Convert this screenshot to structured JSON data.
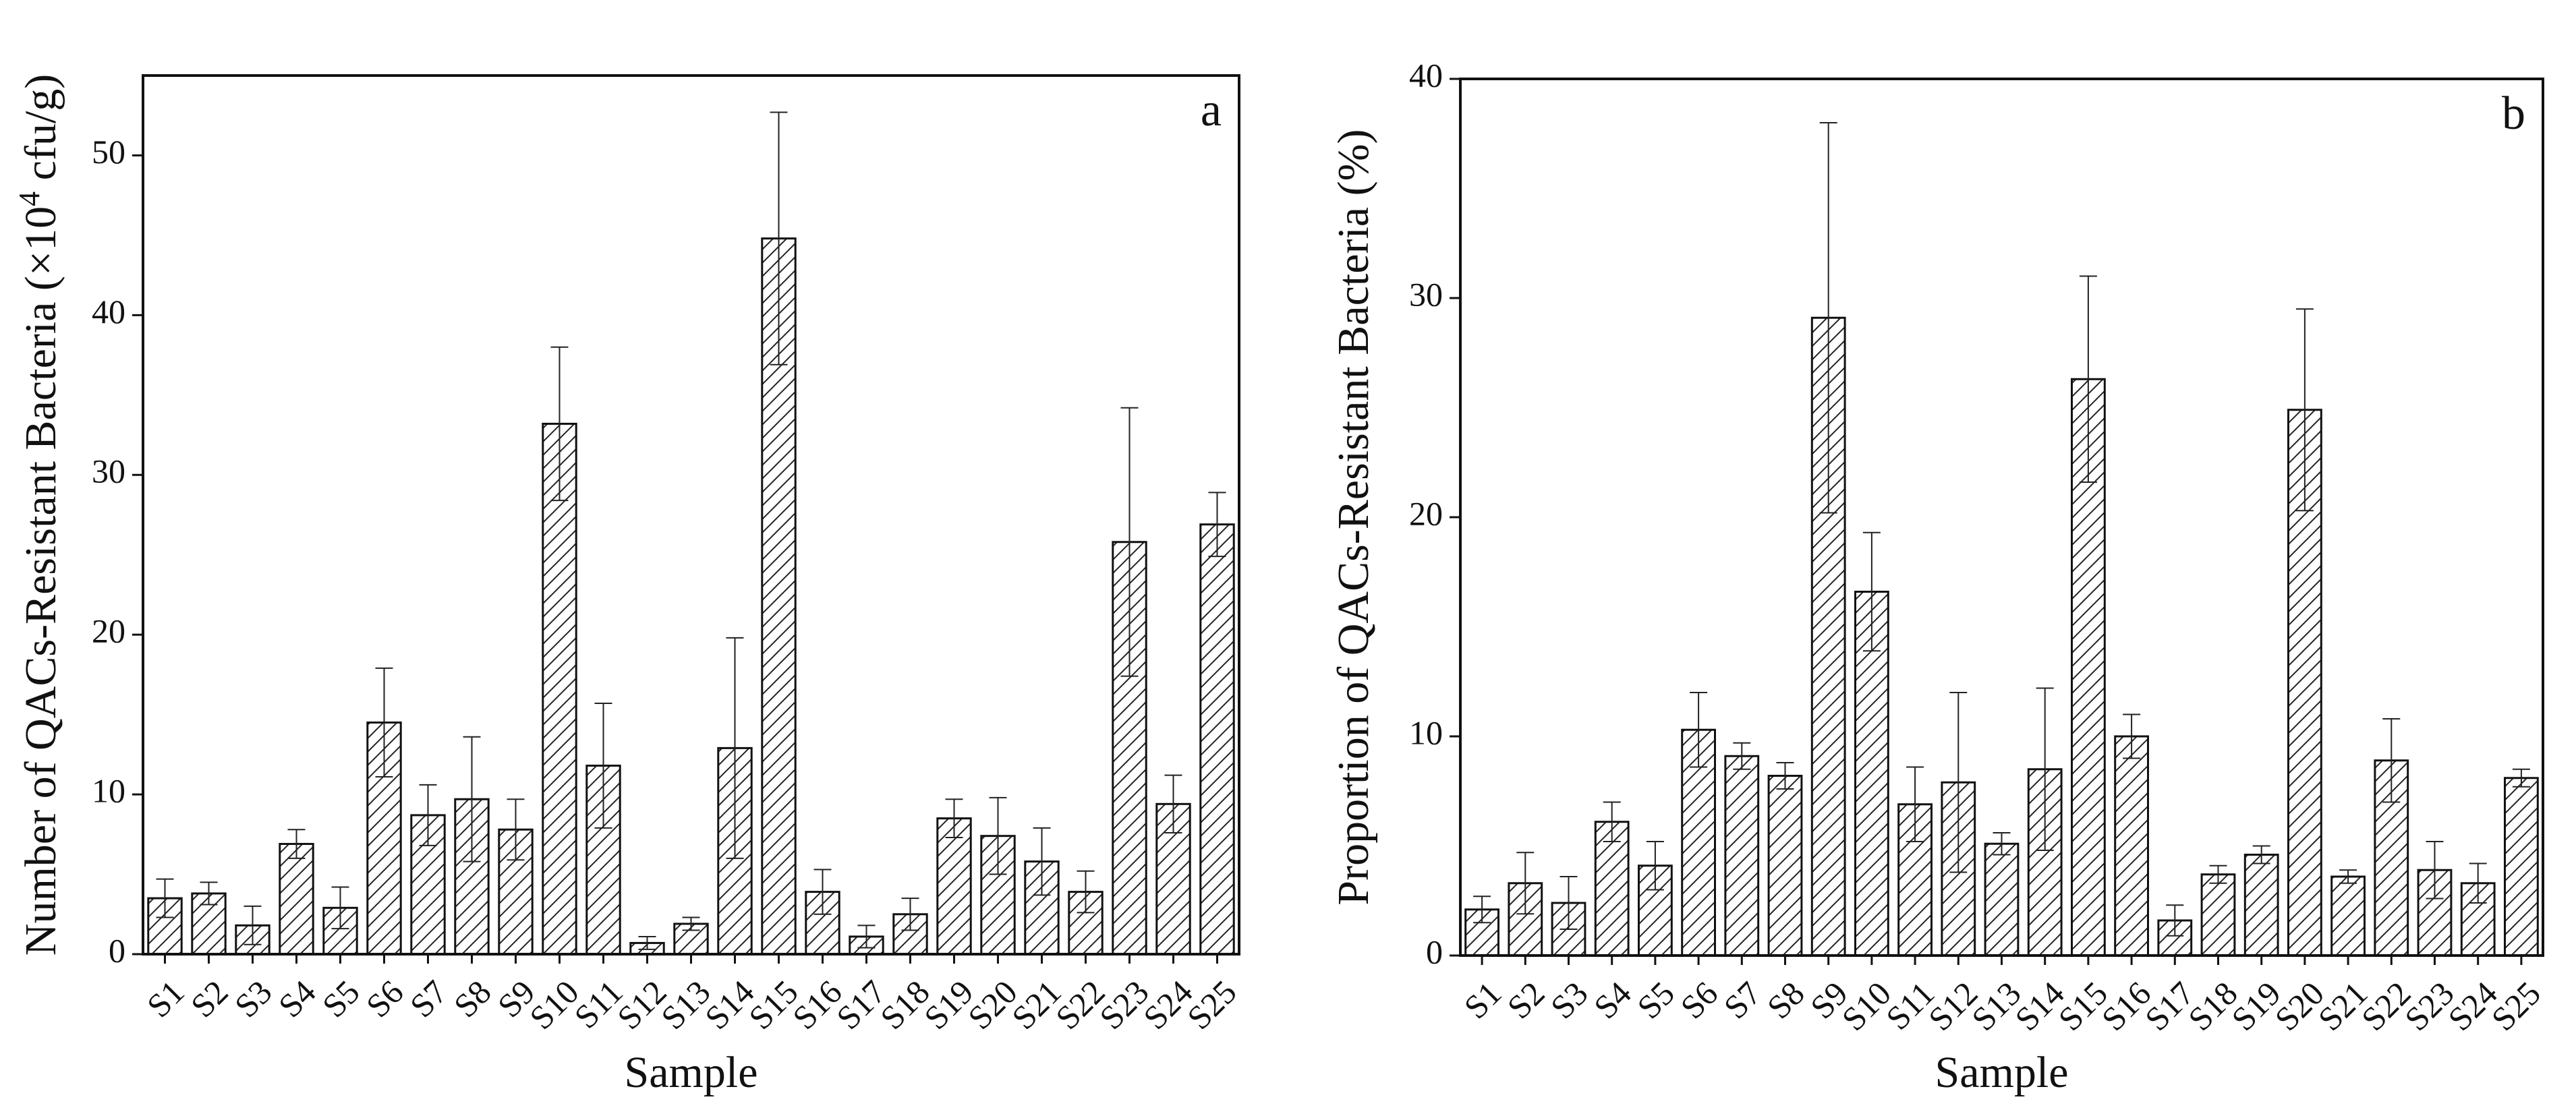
{
  "chart_data": [
    {
      "type": "bar",
      "panel_label": "a",
      "xlabel": "Sample",
      "ylabel": "Number of QACs-Resistant Bacteria (×10",
      "ylabel_sup": "4",
      "ylabel_unit": " cfu/g)",
      "ylim": [
        0,
        55
      ],
      "yticks": [
        0,
        10,
        20,
        30,
        40,
        50
      ],
      "categories": [
        "S1",
        "S2",
        "S3",
        "S4",
        "S5",
        "S6",
        "S7",
        "S8",
        "S9",
        "S10",
        "S11",
        "S12",
        "S13",
        "S14",
        "S15",
        "S16",
        "S17",
        "S18",
        "S19",
        "S20",
        "S21",
        "S22",
        "S23",
        "S24",
        "S25"
      ],
      "values": [
        3.5,
        3.8,
        1.8,
        6.9,
        2.9,
        14.5,
        8.7,
        9.7,
        7.8,
        33.2,
        11.8,
        0.7,
        1.9,
        12.9,
        44.8,
        3.9,
        1.1,
        2.5,
        8.5,
        7.4,
        5.8,
        3.9,
        25.8,
        9.4,
        26.9
      ],
      "errors": [
        1.2,
        0.7,
        1.2,
        0.9,
        1.3,
        3.4,
        1.9,
        3.9,
        1.9,
        4.8,
        3.9,
        0.4,
        0.4,
        6.9,
        7.9,
        1.4,
        0.7,
        1.0,
        1.2,
        2.4,
        2.1,
        1.3,
        8.4,
        1.8,
        2.0
      ],
      "grid": false,
      "pattern": "diagonal-hatch"
    },
    {
      "type": "bar",
      "panel_label": "b",
      "xlabel": "Sample",
      "ylabel": "Proportion of QACs-Resistant Bacteria (%)",
      "ylim": [
        0,
        40
      ],
      "yticks": [
        0,
        10,
        20,
        30,
        40
      ],
      "categories": [
        "S1",
        "S2",
        "S3",
        "S4",
        "S5",
        "S6",
        "S7",
        "S8",
        "S9",
        "S10",
        "S11",
        "S12",
        "S13",
        "S14",
        "S15",
        "S16",
        "S17",
        "S18",
        "S19",
        "S20",
        "S21",
        "S22",
        "S23",
        "S24",
        "S25"
      ],
      "values": [
        2.1,
        3.3,
        2.4,
        6.1,
        4.1,
        10.3,
        9.1,
        8.2,
        29.1,
        16.6,
        6.9,
        7.9,
        5.1,
        8.5,
        26.3,
        10.0,
        1.6,
        3.7,
        4.6,
        24.9,
        3.6,
        8.9,
        3.9,
        3.3,
        8.1
      ],
      "errors": [
        0.6,
        1.4,
        1.2,
        0.9,
        1.1,
        1.7,
        0.6,
        0.6,
        8.9,
        2.7,
        1.7,
        4.1,
        0.5,
        3.7,
        4.7,
        1.0,
        0.7,
        0.4,
        0.4,
        4.6,
        0.3,
        1.9,
        1.3,
        0.9,
        0.4
      ],
      "grid": false,
      "pattern": "diagonal-hatch"
    }
  ]
}
